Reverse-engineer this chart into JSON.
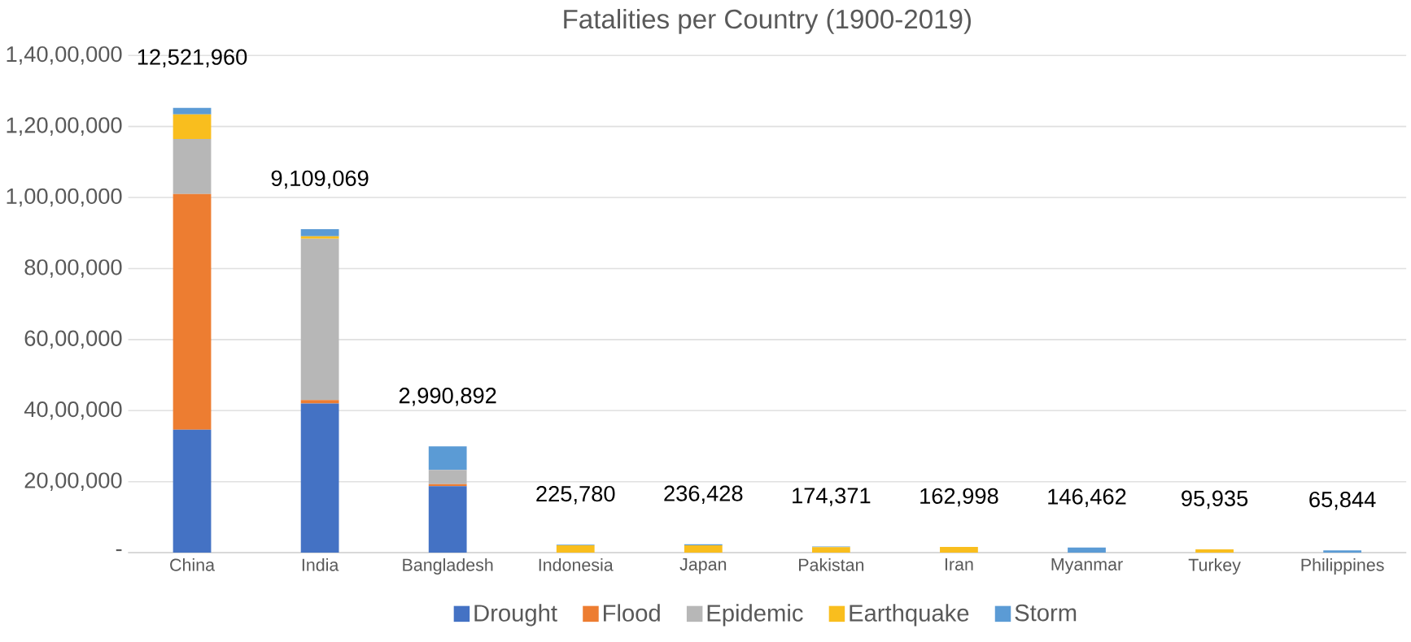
{
  "chart_data": {
    "type": "bar",
    "title": "Fatalities per Country (1900-2019)",
    "stacked": true,
    "grid": "y",
    "legend": "bottom",
    "categories": [
      "China",
      "India",
      "Bangladesh",
      "Indonesia",
      "Japan",
      "Pakistan",
      "Iran",
      "Myanmar",
      "Turkey",
      "Philippines"
    ],
    "series": [
      {
        "name": "Drought",
        "color": "#4472c4",
        "values": [
          3460000,
          4200000,
          1870000,
          0,
          0,
          0,
          0,
          0,
          0,
          0
        ]
      },
      {
        "name": "Flood",
        "color": "#ed7d31",
        "values": [
          6640000,
          100000,
          60000,
          0,
          0,
          0,
          0,
          0,
          0,
          0
        ]
      },
      {
        "name": "Epidemic",
        "color": "#b7b7b7",
        "values": [
          1550000,
          4540000,
          400000,
          0,
          0,
          0,
          0,
          0,
          0,
          0
        ]
      },
      {
        "name": "Earthquake",
        "color": "#f9be1e",
        "values": [
          690000,
          70000,
          0,
          205780,
          206428,
          154371,
          162998,
          0,
          95935,
          0
        ]
      },
      {
        "name": "Storm",
        "color": "#5b9bd5",
        "values": [
          181960,
          199069,
          660892,
          20000,
          30000,
          20000,
          0,
          146462,
          0,
          65844
        ]
      }
    ],
    "totals": [
      "12,521,960",
      "9,109,069",
      "2,990,892",
      "225,780",
      "236,428",
      "174,371",
      "162,998",
      "146,462",
      "95,935",
      "65,844"
    ],
    "ylim": [
      0,
      14000000
    ],
    "yticks": [
      {
        "value": 0,
        "label": "-"
      },
      {
        "value": 2000000,
        "label": "20,00,000"
      },
      {
        "value": 4000000,
        "label": "40,00,000"
      },
      {
        "value": 6000000,
        "label": "60,00,000"
      },
      {
        "value": 8000000,
        "label": "80,00,000"
      },
      {
        "value": 10000000,
        "label": "1,00,00,000"
      },
      {
        "value": 12000000,
        "label": "1,20,00,000"
      },
      {
        "value": 14000000,
        "label": "1,40,00,000"
      }
    ]
  }
}
